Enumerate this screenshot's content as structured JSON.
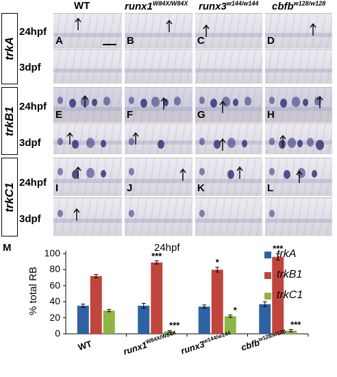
{
  "figure": {
    "columns": [
      {
        "label": "WT",
        "sup": ""
      },
      {
        "label": "runx1",
        "sup": "W84X/W84X"
      },
      {
        "label": "runx3",
        "sup": "w144/w144"
      },
      {
        "label": "cbfb",
        "sup": "w128/w128"
      }
    ],
    "genes": [
      "trkA",
      "trkB1",
      "trkC1"
    ],
    "stages": [
      "24hpf",
      "3dpf"
    ],
    "panel_letters": [
      "A",
      "B",
      "C",
      "D",
      "E",
      "F",
      "G",
      "H",
      "I",
      "J",
      "K",
      "L"
    ],
    "panel_m_label": "M"
  },
  "chart_data": {
    "type": "bar",
    "title": "24hpf",
    "ylabel": "% total RB",
    "xlabel": "",
    "ylim": [
      0,
      100
    ],
    "yticks": [
      0,
      20,
      40,
      60,
      80,
      100
    ],
    "categories": [
      {
        "name": "WT",
        "sup": ""
      },
      {
        "name": "runx1",
        "sup": "W84X/W84X"
      },
      {
        "name": "runx3",
        "sup": "w144/w144"
      },
      {
        "name": "cbfb",
        "sup": "w128/w128"
      }
    ],
    "series": [
      {
        "name": "trkA",
        "color": "#2e62a3",
        "values": [
          35,
          35,
          34,
          37
        ],
        "errors": [
          2,
          3,
          2,
          3
        ],
        "sig": [
          "",
          "",
          "",
          ""
        ]
      },
      {
        "name": "trkB1",
        "color": "#c0453d",
        "values": [
          72,
          89,
          80,
          96
        ],
        "errors": [
          2,
          2,
          3,
          4
        ],
        "sig": [
          "",
          "***",
          "*",
          "***"
        ]
      },
      {
        "name": "trkC1",
        "color": "#8eb548",
        "values": [
          29,
          3,
          22,
          4
        ],
        "errors": [
          1.5,
          1,
          1.5,
          1.5
        ],
        "sig": [
          "",
          "***",
          "*",
          "***"
        ]
      }
    ],
    "legend_position": "top-right",
    "grid": false
  }
}
